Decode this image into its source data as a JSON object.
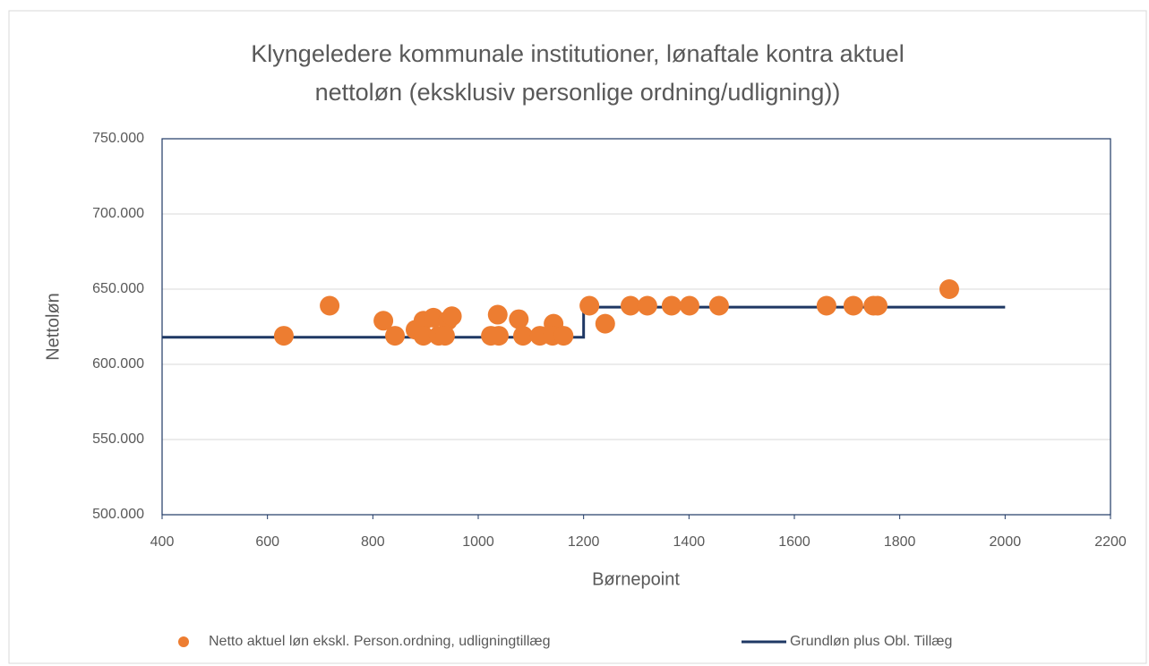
{
  "chart_data": {
    "type": "scatter",
    "title": [
      "Klyngeledere kommunale institutioner, lønaftale kontra aktuel",
      "nettoløn (eksklusiv personlige ordning/udligning))"
    ],
    "x_label": "Børnepoint",
    "y_label": "Nettoløn",
    "xlim": [
      400,
      2200
    ],
    "xticks": [
      400,
      600,
      800,
      1000,
      1200,
      1400,
      1600,
      1800,
      2000,
      2200
    ],
    "ylim": [
      500000,
      750000
    ],
    "yticks": [
      {
        "value": 500000,
        "label": "500.000"
      },
      {
        "value": 550000,
        "label": "550.000"
      },
      {
        "value": 600000,
        "label": "600.000"
      },
      {
        "value": 650000,
        "label": "650.000"
      },
      {
        "value": 700000,
        "label": "700.000"
      },
      {
        "value": 750000,
        "label": "750.000"
      }
    ],
    "grid": true,
    "legend": "bottom",
    "series": [
      {
        "name": "Netto aktuel løn ekskl. Person.ordning, udligningtillæg",
        "type": "scatter",
        "color": "#ed7d31",
        "x": [
          631,
          718,
          820,
          842,
          881,
          896,
          896,
          915,
          925,
          942,
          937,
          950,
          1024,
          1037,
          1039,
          1077,
          1085,
          1117,
          1143,
          1141,
          1162,
          1211,
          1241,
          1289,
          1321,
          1367,
          1401,
          1457,
          1661,
          1712,
          1750,
          1758,
          1894
        ],
        "values": [
          619000,
          639000,
          629000,
          619000,
          623000,
          629000,
          619000,
          631000,
          619000,
          629000,
          619000,
          632000,
          619000,
          633000,
          619000,
          630000,
          619000,
          619000,
          627000,
          619000,
          619000,
          639000,
          627000,
          639000,
          639000,
          639000,
          639000,
          639000,
          639000,
          639000,
          639000,
          639000,
          650000
        ]
      },
      {
        "name": "Grundløn plus Obl. Tillæg",
        "type": "line",
        "color": "#1f3864",
        "x": [
          400,
          1200,
          1200,
          2000
        ],
        "values": [
          618000,
          618000,
          638000,
          638000
        ]
      }
    ]
  }
}
